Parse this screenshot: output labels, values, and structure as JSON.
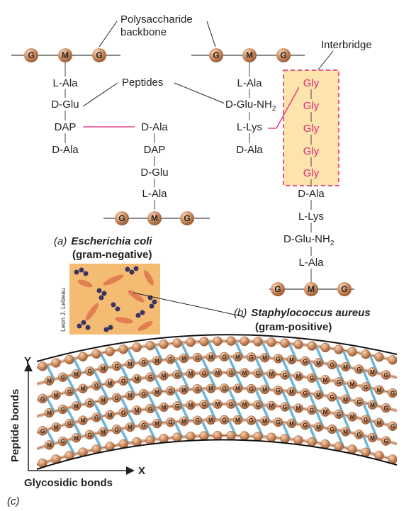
{
  "backbone_label_line1": "Polysaccharide",
  "backbone_label_line2": "backbone",
  "peptides_label": "Peptides",
  "interbridge_label": "Interbridge",
  "node_g": "G",
  "node_m": "M",
  "ecoli": {
    "chain_left": [
      "L-Ala",
      "D-Glu",
      "DAP",
      "D-Ala"
    ],
    "chain_right": [
      "D-Ala",
      "DAP",
      "D-Glu",
      "L-Ala"
    ],
    "caption_letter": "(a)",
    "caption_name": "Escherichia coli",
    "caption_type": "(gram-negative)"
  },
  "staph": {
    "chain_top": [
      "L-Ala",
      "D-Glu-NH",
      "L-Lys",
      "D-Ala"
    ],
    "subscript": "2",
    "bridge": [
      "Gly",
      "Gly",
      "Gly",
      "Gly",
      "Gly"
    ],
    "chain_bottom": [
      "D-Ala",
      "L-Lys",
      "D-Glu-NH",
      "L-Ala"
    ],
    "caption_letter": "(b)",
    "caption_name": "Staphylococcus aureus",
    "caption_type": "(gram-positive)"
  },
  "photo_credit": "Leon J. Lebeau",
  "sheet": {
    "axis_y": "Y",
    "axis_x": "X",
    "y_label": "Peptide bonds",
    "x_label": "Glycosidic bonds",
    "caption_letter": "(c)"
  },
  "colors": {
    "bead": "#c8875c",
    "highlight_box": "#fde3ac",
    "interbridge": "#e0287a",
    "crosslink": "#6fb6d6",
    "strand": "#c8875c"
  }
}
